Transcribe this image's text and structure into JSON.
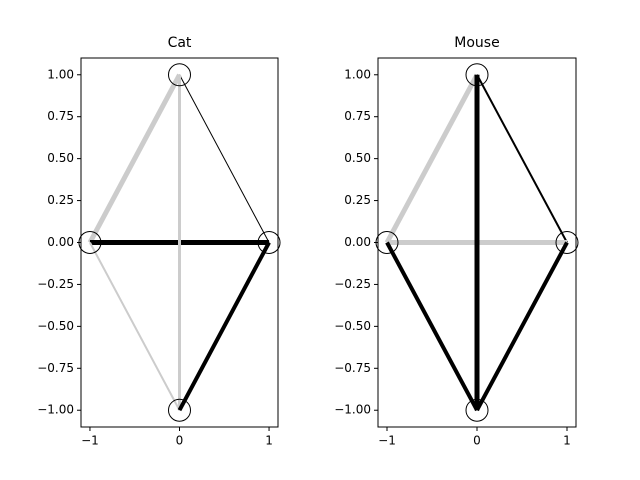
{
  "chart_data": [
    {
      "type": "network",
      "title": "Cat",
      "x": [
        -1,
        0,
        1,
        0
      ],
      "y": [
        0,
        1,
        0,
        -1
      ],
      "edges": [
        {
          "source": 0,
          "target": 1,
          "width": 5,
          "color": "#cccccc"
        },
        {
          "source": 1,
          "target": 2,
          "width": 1,
          "color": "#000000"
        },
        {
          "source": 0,
          "target": 2,
          "width": 5,
          "color": "#000000"
        },
        {
          "source": 1,
          "target": 3,
          "width": 3,
          "color": "#cccccc"
        },
        {
          "source": 0,
          "target": 3,
          "width": 2,
          "color": "#cccccc"
        },
        {
          "source": 2,
          "target": 3,
          "width": 4,
          "color": "#000000"
        }
      ],
      "xlim": [
        -1.1,
        1.1
      ],
      "ylim": [
        -1.1,
        1.1
      ],
      "xticks": [
        -1,
        0,
        1
      ],
      "yticks": [
        {
          "value": -1,
          "label": "−1.00"
        },
        {
          "value": -0.75,
          "label": "−0.75"
        },
        {
          "value": -0.5,
          "label": "−0.50"
        },
        {
          "value": -0.25,
          "label": "−0.25"
        },
        {
          "value": 0,
          "label": "0.00"
        },
        {
          "value": 0.25,
          "label": "0.25"
        },
        {
          "value": 0.5,
          "label": "0.50"
        },
        {
          "value": 0.75,
          "label": "0.75"
        },
        {
          "value": 1,
          "label": "1.00"
        }
      ]
    },
    {
      "type": "network",
      "title": "Mouse",
      "x": [
        -1,
        0,
        1,
        0
      ],
      "y": [
        0,
        1,
        0,
        -1
      ],
      "edges": [
        {
          "source": 0,
          "target": 1,
          "width": 5,
          "color": "#cccccc"
        },
        {
          "source": 1,
          "target": 2,
          "width": 2,
          "color": "#000000"
        },
        {
          "source": 0,
          "target": 2,
          "width": 5,
          "color": "#cccccc"
        },
        {
          "source": 1,
          "target": 3,
          "width": 5,
          "color": "#000000"
        },
        {
          "source": 0,
          "target": 3,
          "width": 4,
          "color": "#000000"
        },
        {
          "source": 2,
          "target": 3,
          "width": 4,
          "color": "#000000"
        }
      ],
      "xlim": [
        -1.1,
        1.1
      ],
      "ylim": [
        -1.1,
        1.1
      ],
      "xticks": [
        -1,
        0,
        1
      ],
      "yticks": [
        {
          "value": -1,
          "label": "−1.00"
        },
        {
          "value": -0.75,
          "label": "−0.75"
        },
        {
          "value": -0.5,
          "label": "−0.50"
        },
        {
          "value": -0.25,
          "label": "−0.25"
        },
        {
          "value": 0,
          "label": "0.00"
        },
        {
          "value": 0.25,
          "label": "0.25"
        },
        {
          "value": 0.5,
          "label": "0.50"
        },
        {
          "value": 0.75,
          "label": "0.75"
        },
        {
          "value": 1,
          "label": "1.00"
        }
      ]
    }
  ]
}
